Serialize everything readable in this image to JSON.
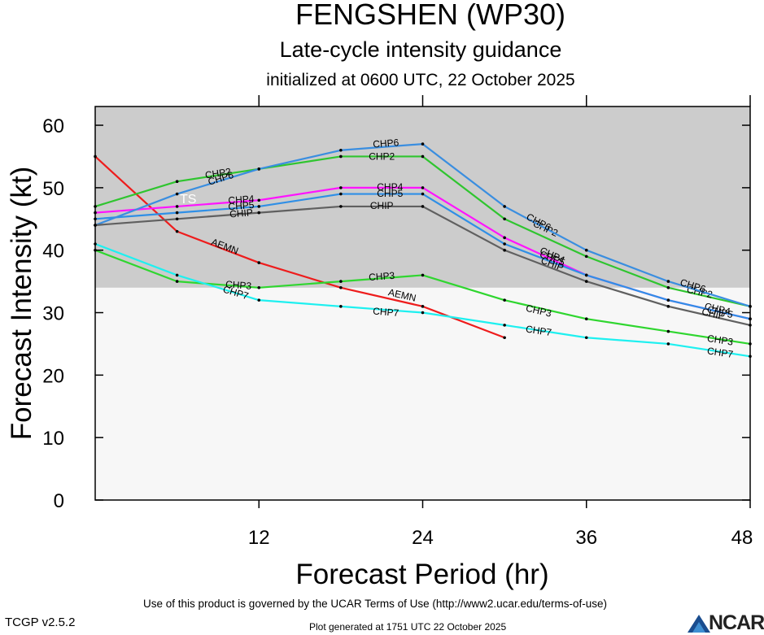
{
  "title": "FENGSHEN (WP30)",
  "subtitle": "Late-cycle intensity guidance",
  "init_line": "initialized at 0600 UTC, 22 October 2025",
  "footer": {
    "version": "TCGP v2.5.2",
    "terms": "Use of this product is governed by the UCAR Terms of Use (http://www2.ucar.edu/terms-of-use)",
    "generated": "Plot generated at 1751 UTC   22 October 2025",
    "logo_text": "NCAR"
  },
  "chart_data": {
    "type": "line",
    "title": "FENGSHEN (WP30)",
    "xlabel": "Forecast Period (hr)",
    "ylabel": "Forecast Intensity (kt)",
    "xlim": [
      0,
      48
    ],
    "ylim": [
      0,
      63
    ],
    "xticks": [
      12,
      24,
      36,
      48
    ],
    "yticks": [
      0,
      10,
      20,
      30,
      40,
      50,
      60
    ],
    "grid": false,
    "legend": "none (series labelled inline)",
    "band": {
      "label": "TS",
      "y_from": 34,
      "y_to": 63,
      "color": "#cccccc"
    },
    "series": [
      {
        "name": "AEMN",
        "color": "#ee1c1c",
        "x": [
          0,
          6,
          12,
          18,
          24,
          30
        ],
        "y": [
          55,
          43,
          38,
          34,
          31,
          26
        ],
        "labels": [
          [
            9.5,
            40.6
          ],
          [
            22.5,
            32.8
          ]
        ]
      },
      {
        "name": "CHP2",
        "color": "#2fc52f",
        "x": [
          0,
          6,
          12,
          18,
          24,
          30,
          36,
          42,
          48
        ],
        "y": [
          47,
          51,
          53,
          55,
          55,
          45,
          39,
          34,
          31
        ],
        "labels": [
          [
            9,
            52.3
          ],
          [
            21,
            55
          ],
          [
            33,
            43.5
          ],
          [
            44.3,
            33.3
          ]
        ]
      },
      {
        "name": "CHP3",
        "color": "#2fd62f",
        "x": [
          0,
          6,
          12,
          18,
          24,
          30,
          36,
          42,
          48
        ],
        "y": [
          40,
          35,
          34,
          35,
          36,
          32,
          29,
          27,
          25
        ],
        "labels": [
          [
            10.5,
            34.4
          ],
          [
            21,
            35.8
          ],
          [
            32.5,
            30.3
          ],
          [
            45.8,
            25.6
          ]
        ]
      },
      {
        "name": "CHP4",
        "color": "#ff14ff",
        "x": [
          0,
          6,
          12,
          18,
          24,
          30,
          36,
          42,
          48
        ],
        "y": [
          46,
          47,
          48,
          50,
          50,
          42,
          36,
          32,
          29
        ],
        "labels": [
          [
            10.7,
            48.1
          ],
          [
            21.6,
            50.1
          ],
          [
            33.5,
            39.2
          ],
          [
            45.6,
            30.6
          ]
        ]
      },
      {
        "name": "CHP5",
        "color": "#2f8fe6",
        "x": [
          0,
          6,
          12,
          18,
          24,
          30,
          36,
          42,
          48
        ],
        "y": [
          45,
          46,
          47,
          49,
          49,
          41,
          36,
          32,
          29
        ],
        "labels": [
          [
            10.7,
            47.1
          ],
          [
            21.6,
            49.1
          ],
          [
            33.5,
            38.7
          ],
          [
            45.8,
            30.1
          ]
        ]
      },
      {
        "name": "CHP6",
        "color": "#3a8ee0",
        "x": [
          0,
          6,
          12,
          18,
          24,
          30,
          36,
          42,
          48
        ],
        "y": [
          44,
          49,
          53,
          56,
          57,
          47,
          40,
          35,
          31
        ],
        "labels": [
          [
            9.2,
            51.5
          ],
          [
            21.3,
            57.1
          ],
          [
            32.5,
            44.5
          ],
          [
            43.8,
            34.3
          ]
        ]
      },
      {
        "name": "CHP7",
        "color": "#1ef0f0",
        "x": [
          0,
          6,
          12,
          18,
          24,
          30,
          36,
          42,
          48
        ],
        "y": [
          41,
          36,
          32,
          31,
          30,
          28,
          26,
          25,
          23
        ],
        "labels": [
          [
            10.3,
            33.2
          ],
          [
            21.3,
            30.1
          ],
          [
            32.5,
            27.1
          ],
          [
            45.8,
            23.6
          ]
        ]
      },
      {
        "name": "CHIP",
        "color": "#606060",
        "x": [
          0,
          6,
          12,
          18,
          24,
          30,
          36,
          42,
          48
        ],
        "y": [
          44,
          45,
          46,
          47,
          47,
          40,
          35,
          31,
          28
        ],
        "labels": [
          [
            10.7,
            45.9
          ],
          [
            21,
            47.1
          ],
          [
            33.5,
            37.8
          ],
          [
            45.3,
            29.8
          ]
        ]
      }
    ]
  }
}
